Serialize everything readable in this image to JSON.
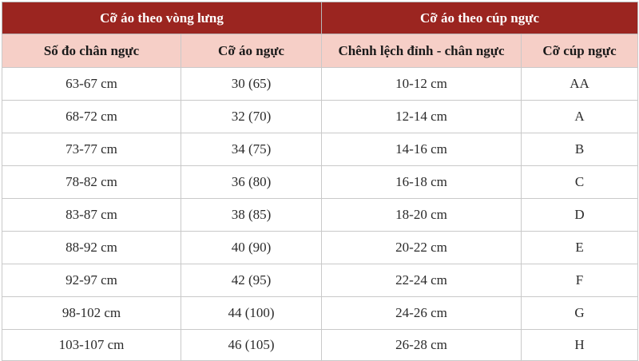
{
  "groups": {
    "band": "Cỡ áo theo vòng lưng",
    "cup": "Cỡ áo theo cúp ngực"
  },
  "columns": [
    "Số đo chân ngực",
    "Cỡ áo ngực",
    "Chênh lệch đỉnh - chân ngực",
    "Cỡ cúp ngực"
  ],
  "rows": [
    [
      "63-67 cm",
      "30 (65)",
      "10-12 cm",
      "AA"
    ],
    [
      "68-72 cm",
      "32 (70)",
      "12-14 cm",
      "A"
    ],
    [
      "73-77 cm",
      "34 (75)",
      "14-16 cm",
      "B"
    ],
    [
      "78-82 cm",
      "36 (80)",
      "16-18 cm",
      "C"
    ],
    [
      "83-87 cm",
      "38 (85)",
      "18-20 cm",
      "D"
    ],
    [
      "88-92 cm",
      "40 (90)",
      "20-22 cm",
      "E"
    ],
    [
      "92-97 cm",
      "42 (95)",
      "22-24 cm",
      "F"
    ],
    [
      "98-102 cm",
      "44 (100)",
      "24-26 cm",
      "G"
    ],
    [
      "103-107 cm",
      "46 (105)",
      "26-28 cm",
      "H"
    ]
  ],
  "colors": {
    "group_header_bg": "#9b2520",
    "column_header_bg": "#f6cfc7",
    "border": "#c9c9c9"
  }
}
